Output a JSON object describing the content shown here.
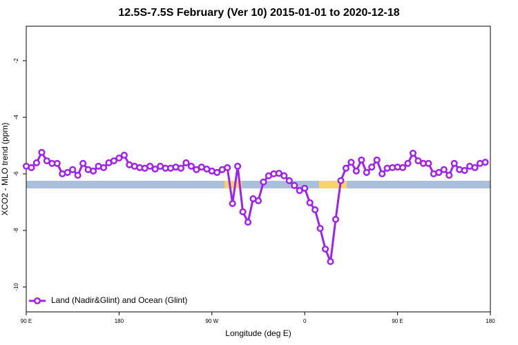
{
  "chart_data": {
    "type": "line",
    "title": "12.5S-7.5S February (Ver 10)   2015-01-01 to 2020-12-18",
    "x_label": "Longitude (deg E)",
    "y_label": "XCO2 - MLO trend (ppm)",
    "x": [
      90,
      95,
      100,
      105,
      110,
      115,
      120,
      125,
      130,
      135,
      140,
      145,
      150,
      155,
      160,
      165,
      170,
      175,
      180,
      185,
      190,
      195,
      200,
      205,
      210,
      215,
      220,
      225,
      230,
      235,
      240,
      245,
      250,
      255,
      260,
      265,
      270,
      275,
      280,
      285,
      290,
      295,
      300,
      305,
      310,
      315,
      320,
      325,
      330,
      335,
      340,
      345,
      350,
      355,
      360,
      365,
      370,
      375,
      380,
      385,
      390,
      395,
      400,
      405,
      410,
      415,
      420,
      425,
      430,
      435,
      440,
      445,
      450,
      455,
      460,
      465,
      470,
      475,
      480,
      485,
      490,
      495,
      500,
      505,
      510,
      515,
      520,
      525,
      530,
      535
    ],
    "series": [
      {
        "name": "Land (Nadir&Glint) and Ocean (Glint)",
        "color": "#a020f0",
        "values": [
          -5.73,
          -5.78,
          -5.61,
          -5.24,
          -5.54,
          -5.63,
          -5.63,
          -6.0,
          -5.95,
          -5.85,
          -6.05,
          -5.63,
          -5.85,
          -5.9,
          -5.73,
          -5.78,
          -5.61,
          -5.54,
          -5.44,
          -5.34,
          -5.68,
          -5.73,
          -5.78,
          -5.8,
          -5.73,
          -5.83,
          -5.73,
          -5.8,
          -5.8,
          -5.76,
          -5.8,
          -5.61,
          -5.73,
          -5.85,
          -5.76,
          -5.83,
          -5.9,
          -5.95,
          -5.85,
          -5.78,
          -7.05,
          -5.73,
          -7.34,
          -7.71,
          -6.88,
          -6.95,
          -6.29,
          -6.07,
          -6.0,
          -5.98,
          -6.07,
          -6.24,
          -6.41,
          -6.59,
          -6.51,
          -7.02,
          -7.27,
          -7.93,
          -8.66,
          -9.1,
          -7.61,
          -6.24,
          -5.8,
          -5.59,
          -5.9,
          -5.51,
          -5.95,
          -5.76,
          -5.51,
          -6.0,
          -5.8,
          -5.78,
          -5.76,
          -5.78,
          -5.63,
          -5.27,
          -5.54,
          -5.63,
          -5.63,
          -6.0,
          -5.95,
          -5.85,
          -6.05,
          -5.63,
          -5.85,
          -5.88,
          -5.73,
          -5.78,
          -5.63,
          -5.59
        ]
      }
    ],
    "xlim": [
      90,
      540
    ],
    "xticks": [
      {
        "value": 90,
        "label": "90 E"
      },
      {
        "value": 180,
        "label": "180"
      },
      {
        "value": 270,
        "label": "90 W"
      },
      {
        "value": 360,
        "label": "0"
      },
      {
        "value": 450,
        "label": "90 E"
      },
      {
        "value": 540,
        "label": "180"
      }
    ],
    "ylim": [
      -10.88,
      -0.78
    ],
    "yticks": [
      -10,
      -8,
      -6,
      -4,
      -2
    ],
    "legend_position": "bottom-left"
  }
}
